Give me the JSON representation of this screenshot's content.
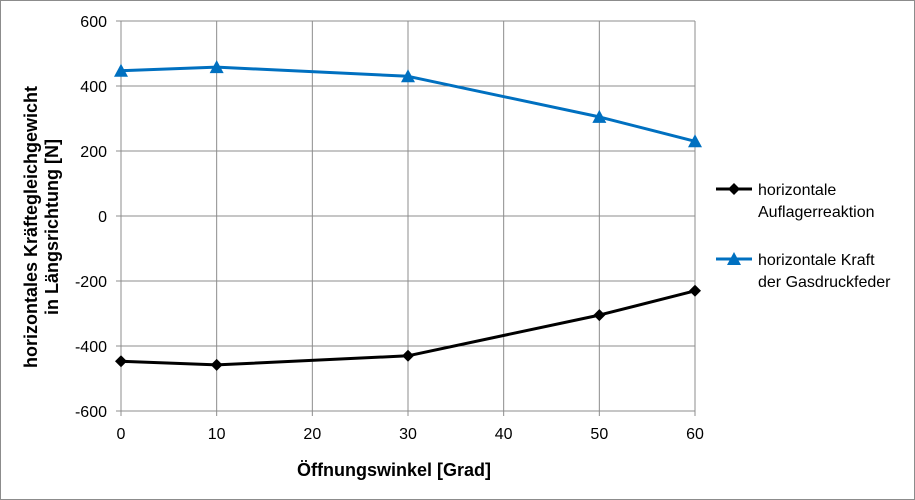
{
  "chart_data": {
    "type": "line",
    "xlabel": "Öffnungswinkel [Grad]",
    "ylabel_lines": [
      "horizontales Kräftegleichgewicht",
      "in Längsrichtung [N]"
    ],
    "xlim": [
      0,
      60
    ],
    "ylim": [
      -600,
      600
    ],
    "x_ticks": [
      "0",
      "10",
      "20",
      "30",
      "40",
      "50",
      "60"
    ],
    "y_ticks": [
      "600",
      "400",
      "200",
      "0",
      "-200",
      "-400",
      "-600"
    ],
    "grid": true,
    "legend_position": "right",
    "series": [
      {
        "name_lines": [
          "horizontale",
          "Auflagerreaktion"
        ],
        "color": "#000000",
        "marker": "diamond",
        "x": [
          0,
          10,
          30,
          50,
          60
        ],
        "y": [
          -447,
          -458,
          -430,
          -305,
          -230
        ]
      },
      {
        "name_lines": [
          "horizontale Kraft",
          "der Gasdruckfeder"
        ],
        "color": "#0070C0",
        "marker": "triangle",
        "x": [
          0,
          10,
          30,
          50,
          60
        ],
        "y": [
          447,
          458,
          430,
          305,
          230
        ]
      }
    ]
  }
}
